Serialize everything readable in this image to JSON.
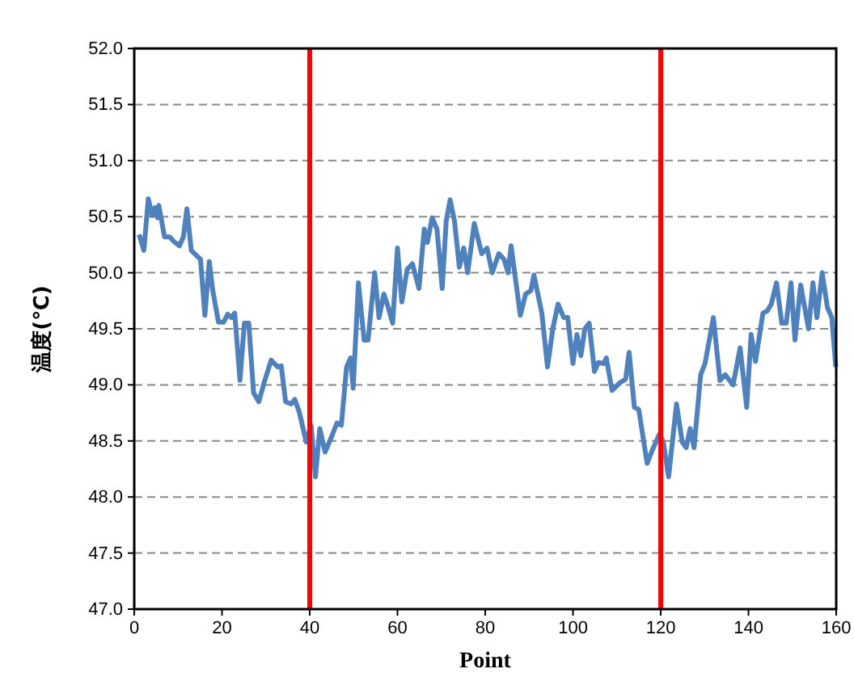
{
  "chart_data": {
    "type": "line",
    "xlabel": "Point",
    "ylabel": "温度(℃)",
    "xlim": [
      0,
      160
    ],
    "xticks": [
      0,
      20,
      40,
      60,
      80,
      100,
      120,
      140,
      160
    ],
    "ylim": [
      47,
      52
    ],
    "yticks": [
      {
        "value": 47,
        "label": "47.0"
      },
      {
        "value": 47.5,
        "label": "47.5"
      },
      {
        "value": 48,
        "label": "48.0"
      },
      {
        "value": 48.5,
        "label": "48.5"
      },
      {
        "value": 49,
        "label": "49.0"
      },
      {
        "value": 49.5,
        "label": "49.5"
      },
      {
        "value": 50,
        "label": "50.0"
      },
      {
        "value": 50.5,
        "label": "50.5"
      },
      {
        "value": 51,
        "label": "51.0"
      },
      {
        "value": 51.5,
        "label": "51.5"
      },
      {
        "value": 52,
        "label": "52.0"
      }
    ],
    "grid": "y",
    "line_style": "solid",
    "marker": "none",
    "ref_lines": [
      {
        "axis": "x",
        "value": 40,
        "color": "#ff0000"
      },
      {
        "axis": "x",
        "value": 120,
        "color": "#ff0000"
      }
    ],
    "series": [
      {
        "color": "#4f81bd",
        "x": [
          1.1,
          2.2,
          3.2,
          4.1,
          4.7,
          5.3,
          5.6,
          6.9,
          8.1,
          9.0,
          10.3,
          11.2,
          12.0,
          13.0,
          14.3,
          15.1,
          16.1,
          17.1,
          17.9,
          19.2,
          20.4,
          21.3,
          22.2,
          22.9,
          24.1,
          25.1,
          26.1,
          27.2,
          28.4,
          29.6,
          31.2,
          32.7,
          33.5,
          34.5,
          35.8,
          36.6,
          37.6,
          39.2,
          40.3,
          41.3,
          42.3,
          43.5,
          45.0,
          46.2,
          47.2,
          48.4,
          49.3,
          49.9,
          51.1,
          52.4,
          53.3,
          54.8,
          55.8,
          56.9,
          57.9,
          58.9,
          60.0,
          61.0,
          62.2,
          63.4,
          64.9,
          66.1,
          66.8,
          67.9,
          69.0,
          70.2,
          71.1,
          72.0,
          73.0,
          74.1,
          75.1,
          76.0,
          77.5,
          79.2,
          80.4,
          81.6,
          83.1,
          84.3,
          85.2,
          85.9,
          88.0,
          89.2,
          90.4,
          91.1,
          92.9,
          94.2,
          95.4,
          96.6,
          97.9,
          98.8,
          100.0,
          100.9,
          101.8,
          102.7,
          103.7,
          104.9,
          105.8,
          107.0,
          107.6,
          108.9,
          110.7,
          112.0,
          112.8,
          114.0,
          115.0,
          116.9,
          118.1,
          119.7,
          120.6,
          121.8,
          123.6,
          124.9,
          125.8,
          126.7,
          127.6,
          129.1,
          130.1,
          132.0,
          133.5,
          134.7,
          136.5,
          138.1,
          139.6,
          140.6,
          141.6,
          143.3,
          144.3,
          145.2,
          146.4,
          147.6,
          148.6,
          149.7,
          150.6,
          151.9,
          153.7,
          154.7,
          155.6,
          156.8,
          158.0,
          159.0,
          159.9
        ],
        "values": [
          50.34,
          50.2,
          50.66,
          50.51,
          50.58,
          50.49,
          50.6,
          50.32,
          50.32,
          50.28,
          50.24,
          50.32,
          50.57,
          50.2,
          50.15,
          50.12,
          49.62,
          50.1,
          49.84,
          49.56,
          49.56,
          49.63,
          49.6,
          49.64,
          49.04,
          49.55,
          49.55,
          48.93,
          48.85,
          49.02,
          49.22,
          49.16,
          49.17,
          48.85,
          48.83,
          48.87,
          48.76,
          48.49,
          48.64,
          48.18,
          48.61,
          48.4,
          48.54,
          48.66,
          48.64,
          49.16,
          49.24,
          48.97,
          49.91,
          49.4,
          49.4,
          50.0,
          49.6,
          49.81,
          49.69,
          49.55,
          50.22,
          49.74,
          50.03,
          50.08,
          49.86,
          50.39,
          50.27,
          50.49,
          50.39,
          49.86,
          50.46,
          50.65,
          50.46,
          50.05,
          50.22,
          50.0,
          50.44,
          50.17,
          50.22,
          50.0,
          50.17,
          50.12,
          50.0,
          50.24,
          49.62,
          49.81,
          49.84,
          49.98,
          49.64,
          49.16,
          49.5,
          49.72,
          49.6,
          49.6,
          49.19,
          49.45,
          49.26,
          49.5,
          49.55,
          49.12,
          49.2,
          49.19,
          49.24,
          48.95,
          49.02,
          49.05,
          49.29,
          48.8,
          48.78,
          48.3,
          48.42,
          48.56,
          48.49,
          48.18,
          48.83,
          48.49,
          48.44,
          48.61,
          48.44,
          49.09,
          49.19,
          49.6,
          49.04,
          49.09,
          49.0,
          49.33,
          48.8,
          49.45,
          49.21,
          49.64,
          49.66,
          49.72,
          49.91,
          49.55,
          49.55,
          49.91,
          49.4,
          49.89,
          49.5,
          49.91,
          49.6,
          50.0,
          49.69,
          49.6,
          49.16
        ]
      }
    ]
  }
}
